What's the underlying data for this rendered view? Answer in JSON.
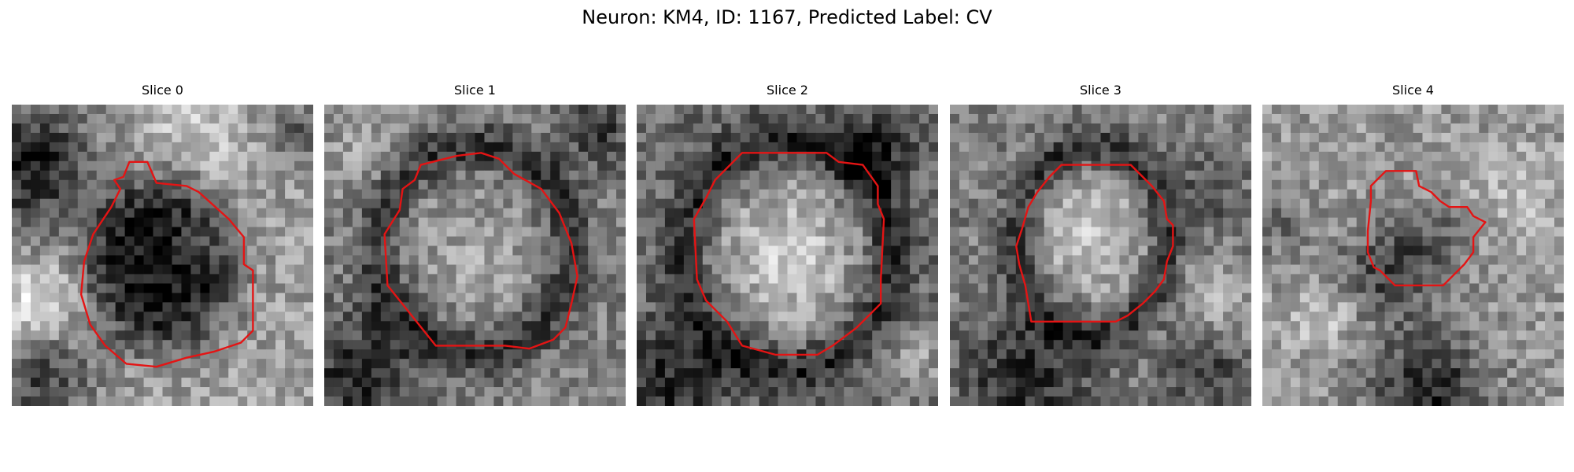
{
  "figure": {
    "title": "Neuron: KM4, ID: 1167, Predicted Label: CV"
  },
  "slices": [
    {
      "label": "Slice 0"
    },
    {
      "label": "Slice 1"
    },
    {
      "label": "Slice 2"
    },
    {
      "label": "Slice 3"
    },
    {
      "label": "Slice 4"
    }
  ],
  "colors": {
    "contour": "#e41414",
    "background": "#ffffff"
  }
}
